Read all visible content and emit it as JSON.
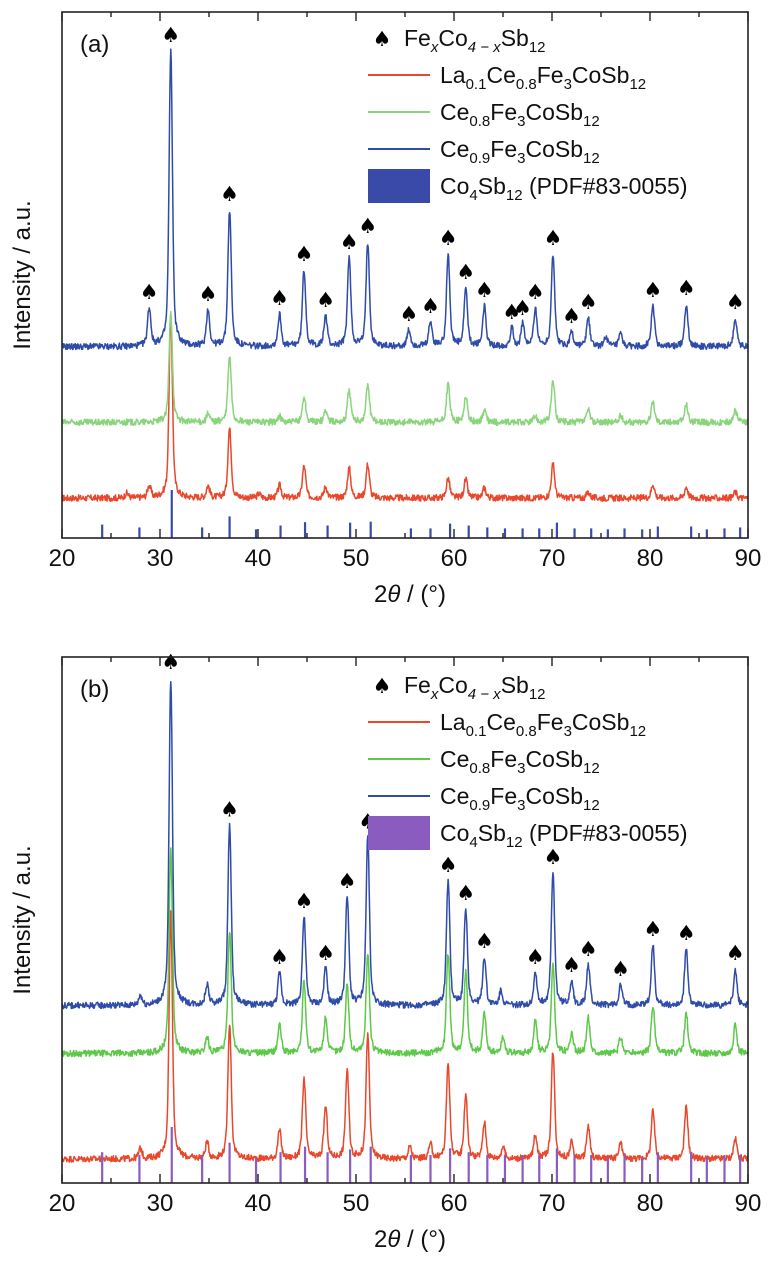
{
  "chart_data": [
    {
      "type": "line",
      "panel_label": "(a)",
      "xlabel_prefix": "2",
      "xlabel_theta": "θ",
      "xlabel_suffix": " / (°)",
      "ylabel": "Intensity / a.u.",
      "xlim": [
        20,
        90
      ],
      "x_ticks": [
        "20",
        "30",
        "40",
        "50",
        "60",
        "70",
        "80",
        "90"
      ],
      "y_ticks_labeled": false,
      "legend_position": "top-right",
      "legend": [
        {
          "kind": "marker",
          "base": [
            "Fe",
            "Co",
            "Sb"
          ],
          "subs": [
            "x",
            "4 − x",
            "12"
          ],
          "italic_subs": [
            true,
            true,
            false
          ]
        },
        {
          "kind": "line",
          "series": "La0.1Ce0.8Fe3CoSb12",
          "color": "#e8482c",
          "base": [
            "La",
            "Ce",
            "Fe",
            "CoSb"
          ],
          "subs": [
            "0.1",
            "0.8",
            "3",
            "12"
          ]
        },
        {
          "kind": "line",
          "series": "Ce0.8Fe3CoSb12",
          "color": "#8ad47c",
          "base": [
            "Ce",
            "Fe",
            "CoSb"
          ],
          "subs": [
            "0.8",
            "3",
            "12"
          ]
        },
        {
          "kind": "line",
          "series": "Ce0.9Fe3CoSb12",
          "color": "#2f4ca8",
          "base": [
            "Ce",
            "Fe",
            "CoSb"
          ],
          "subs": [
            "0.9",
            "3",
            "12"
          ]
        },
        {
          "kind": "box",
          "color": "#3a4aa8",
          "base": [
            "Co",
            "Sb"
          ],
          "subs": [
            "4",
            "12"
          ],
          "tail": " (PDF#83-0055)"
        }
      ],
      "reference_color": "#3a4aa8",
      "reference_peaks": [
        {
          "x": 24.1,
          "i": 0.28
        },
        {
          "x": 27.9,
          "i": 0.22
        },
        {
          "x": 31.2,
          "i": 1.0
        },
        {
          "x": 34.3,
          "i": 0.22
        },
        {
          "x": 37.1,
          "i": 0.45
        },
        {
          "x": 39.8,
          "i": 0.18
        },
        {
          "x": 42.3,
          "i": 0.26
        },
        {
          "x": 44.8,
          "i": 0.33
        },
        {
          "x": 47.1,
          "i": 0.26
        },
        {
          "x": 49.4,
          "i": 0.32
        },
        {
          "x": 51.5,
          "i": 0.34
        },
        {
          "x": 55.6,
          "i": 0.2
        },
        {
          "x": 57.6,
          "i": 0.2
        },
        {
          "x": 59.6,
          "i": 0.3
        },
        {
          "x": 61.5,
          "i": 0.26
        },
        {
          "x": 63.4,
          "i": 0.22
        },
        {
          "x": 65.2,
          "i": 0.2
        },
        {
          "x": 67.0,
          "i": 0.2
        },
        {
          "x": 68.7,
          "i": 0.2
        },
        {
          "x": 70.5,
          "i": 0.32
        },
        {
          "x": 72.3,
          "i": 0.2
        },
        {
          "x": 74.0,
          "i": 0.2
        },
        {
          "x": 75.7,
          "i": 0.18
        },
        {
          "x": 77.4,
          "i": 0.2
        },
        {
          "x": 79.2,
          "i": 0.18
        },
        {
          "x": 80.8,
          "i": 0.24
        },
        {
          "x": 84.2,
          "i": 0.24
        },
        {
          "x": 85.8,
          "i": 0.18
        },
        {
          "x": 87.6,
          "i": 0.2
        },
        {
          "x": 89.2,
          "i": 0.22
        }
      ],
      "spade_marks": [
        28.9,
        31.1,
        34.9,
        37.1,
        42.2,
        44.7,
        46.9,
        49.3,
        51.2,
        55.4,
        57.6,
        59.4,
        61.2,
        63.1,
        65.9,
        67.0,
        68.3,
        70.1,
        72.0,
        73.7,
        80.3,
        83.7,
        88.7
      ],
      "series": [
        {
          "name": "La0.1Ce0.8Fe3CoSb12",
          "color": "#e8482c",
          "baseline": 1.0,
          "peaks": [
            {
              "x": 26.6,
              "h": 0.12
            },
            {
              "x": 28.9,
              "h": 0.3
            },
            {
              "x": 31.1,
              "h": 4.6
            },
            {
              "x": 34.9,
              "h": 0.3
            },
            {
              "x": 37.1,
              "h": 1.75
            },
            {
              "x": 40.1,
              "h": 0.1
            },
            {
              "x": 42.2,
              "h": 0.32
            },
            {
              "x": 44.7,
              "h": 0.8
            },
            {
              "x": 46.9,
              "h": 0.28
            },
            {
              "x": 49.3,
              "h": 0.75
            },
            {
              "x": 51.2,
              "h": 0.85
            },
            {
              "x": 59.4,
              "h": 0.5
            },
            {
              "x": 61.2,
              "h": 0.46
            },
            {
              "x": 63.1,
              "h": 0.25
            },
            {
              "x": 70.1,
              "h": 0.85
            },
            {
              "x": 73.7,
              "h": 0.15
            },
            {
              "x": 80.3,
              "h": 0.35
            },
            {
              "x": 83.7,
              "h": 0.28
            },
            {
              "x": 88.7,
              "h": 0.15
            }
          ]
        },
        {
          "name": "Ce0.8Fe3CoSb12",
          "color": "#8ad47c",
          "baseline": 2.9,
          "peaks": [
            {
              "x": 31.1,
              "h": 2.75
            },
            {
              "x": 34.9,
              "h": 0.2
            },
            {
              "x": 37.1,
              "h": 1.65
            },
            {
              "x": 42.2,
              "h": 0.15
            },
            {
              "x": 44.7,
              "h": 0.65
            },
            {
              "x": 46.9,
              "h": 0.3
            },
            {
              "x": 49.3,
              "h": 0.8
            },
            {
              "x": 51.2,
              "h": 0.95
            },
            {
              "x": 59.4,
              "h": 0.95
            },
            {
              "x": 61.2,
              "h": 0.65
            },
            {
              "x": 63.1,
              "h": 0.3
            },
            {
              "x": 68.3,
              "h": 0.15
            },
            {
              "x": 70.1,
              "h": 1.05
            },
            {
              "x": 73.7,
              "h": 0.3
            },
            {
              "x": 77.0,
              "h": 0.15
            },
            {
              "x": 80.3,
              "h": 0.5
            },
            {
              "x": 83.7,
              "h": 0.45
            },
            {
              "x": 88.7,
              "h": 0.3
            }
          ]
        },
        {
          "name": "Ce0.9Fe3CoSb12",
          "color": "#2f4ca8",
          "baseline": 4.8,
          "peaks": [
            {
              "x": 28.9,
              "h": 0.95
            },
            {
              "x": 31.1,
              "h": 7.4
            },
            {
              "x": 34.9,
              "h": 0.9
            },
            {
              "x": 37.1,
              "h": 3.4
            },
            {
              "x": 42.2,
              "h": 0.8
            },
            {
              "x": 44.7,
              "h": 1.9
            },
            {
              "x": 46.9,
              "h": 0.75
            },
            {
              "x": 49.3,
              "h": 2.2
            },
            {
              "x": 51.2,
              "h": 2.6
            },
            {
              "x": 55.4,
              "h": 0.4
            },
            {
              "x": 57.6,
              "h": 0.6
            },
            {
              "x": 59.4,
              "h": 2.3
            },
            {
              "x": 61.2,
              "h": 1.45
            },
            {
              "x": 63.1,
              "h": 1.0
            },
            {
              "x": 65.9,
              "h": 0.45
            },
            {
              "x": 67.0,
              "h": 0.55
            },
            {
              "x": 68.3,
              "h": 0.95
            },
            {
              "x": 70.1,
              "h": 2.3
            },
            {
              "x": 72.0,
              "h": 0.35
            },
            {
              "x": 73.7,
              "h": 0.7
            },
            {
              "x": 75.5,
              "h": 0.25
            },
            {
              "x": 77.0,
              "h": 0.3
            },
            {
              "x": 80.3,
              "h": 1.0
            },
            {
              "x": 83.7,
              "h": 1.05
            },
            {
              "x": 88.7,
              "h": 0.7
            }
          ]
        }
      ]
    },
    {
      "type": "line",
      "panel_label": "(b)",
      "xlabel_prefix": "2",
      "xlabel_theta": "θ",
      "xlabel_suffix": " / (°)",
      "ylabel": "Intensity / a.u.",
      "xlim": [
        20,
        90
      ],
      "x_ticks": [
        "20",
        "30",
        "40",
        "50",
        "60",
        "70",
        "80",
        "90"
      ],
      "y_ticks_labeled": false,
      "legend_position": "top-right",
      "legend": [
        {
          "kind": "marker",
          "base": [
            "Fe",
            "Co",
            "Sb"
          ],
          "subs": [
            "x",
            "4 − x",
            "12"
          ],
          "italic_subs": [
            true,
            true,
            false
          ]
        },
        {
          "kind": "line",
          "series": "La0.1Ce0.8Fe3CoSb12",
          "color": "#e8482c",
          "base": [
            "La",
            "Ce",
            "Fe",
            "CoSb"
          ],
          "subs": [
            "0.1",
            "0.8",
            "3",
            "12"
          ]
        },
        {
          "kind": "line",
          "series": "Ce0.8Fe3CoSb12",
          "color": "#5ec84a",
          "base": [
            "Ce",
            "Fe",
            "CoSb"
          ],
          "subs": [
            "0.8",
            "3",
            "12"
          ]
        },
        {
          "kind": "line",
          "series": "Ce0.9Fe3CoSb12",
          "color": "#2f4ca8",
          "base": [
            "Ce",
            "Fe",
            "CoSb"
          ],
          "subs": [
            "0.9",
            "3",
            "12"
          ]
        },
        {
          "kind": "box",
          "color": "#8a5cc0",
          "base": [
            "Co",
            "Sb"
          ],
          "subs": [
            "4",
            "12"
          ],
          "tail": " (PDF#83-0055)"
        }
      ],
      "reference_color": "#8a5cc0",
      "reference_peaks": [
        {
          "x": 24.1,
          "i": 0.55
        },
        {
          "x": 27.9,
          "i": 0.5
        },
        {
          "x": 31.2,
          "i": 1.0
        },
        {
          "x": 34.3,
          "i": 0.5
        },
        {
          "x": 37.1,
          "i": 0.72
        },
        {
          "x": 39.8,
          "i": 0.45
        },
        {
          "x": 42.3,
          "i": 0.55
        },
        {
          "x": 44.8,
          "i": 0.65
        },
        {
          "x": 47.1,
          "i": 0.55
        },
        {
          "x": 49.4,
          "i": 0.6
        },
        {
          "x": 51.5,
          "i": 0.65
        },
        {
          "x": 55.6,
          "i": 0.5
        },
        {
          "x": 57.6,
          "i": 0.5
        },
        {
          "x": 59.6,
          "i": 0.62
        },
        {
          "x": 61.5,
          "i": 0.55
        },
        {
          "x": 63.4,
          "i": 0.5
        },
        {
          "x": 65.2,
          "i": 0.5
        },
        {
          "x": 67.0,
          "i": 0.5
        },
        {
          "x": 68.7,
          "i": 0.5
        },
        {
          "x": 70.5,
          "i": 0.62
        },
        {
          "x": 72.3,
          "i": 0.5
        },
        {
          "x": 74.0,
          "i": 0.5
        },
        {
          "x": 75.7,
          "i": 0.45
        },
        {
          "x": 77.4,
          "i": 0.5
        },
        {
          "x": 79.2,
          "i": 0.45
        },
        {
          "x": 80.8,
          "i": 0.55
        },
        {
          "x": 84.2,
          "i": 0.55
        },
        {
          "x": 85.8,
          "i": 0.45
        },
        {
          "x": 87.6,
          "i": 0.5
        },
        {
          "x": 89.2,
          "i": 0.5
        }
      ],
      "spade_marks": [
        31.1,
        37.1,
        42.2,
        44.7,
        46.9,
        49.1,
        51.2,
        59.4,
        61.2,
        63.1,
        68.3,
        70.1,
        72.0,
        73.7,
        77.0,
        80.3,
        83.7,
        88.7
      ],
      "series": [
        {
          "name": "La0.1Ce0.8Fe3CoSb12",
          "color": "#e8482c",
          "baseline": 0.6,
          "peaks": [
            {
              "x": 28.0,
              "h": 0.25
            },
            {
              "x": 31.1,
              "h": 6.2
            },
            {
              "x": 34.8,
              "h": 0.4
            },
            {
              "x": 37.1,
              "h": 3.4
            },
            {
              "x": 42.2,
              "h": 0.7
            },
            {
              "x": 44.7,
              "h": 2.0
            },
            {
              "x": 46.9,
              "h": 1.3
            },
            {
              "x": 49.1,
              "h": 2.2
            },
            {
              "x": 51.2,
              "h": 3.1
            },
            {
              "x": 55.5,
              "h": 0.3
            },
            {
              "x": 57.6,
              "h": 0.35
            },
            {
              "x": 59.4,
              "h": 2.4
            },
            {
              "x": 61.2,
              "h": 1.6
            },
            {
              "x": 63.1,
              "h": 0.9
            },
            {
              "x": 65.0,
              "h": 0.3
            },
            {
              "x": 68.3,
              "h": 0.6
            },
            {
              "x": 70.1,
              "h": 2.7
            },
            {
              "x": 72.0,
              "h": 0.4
            },
            {
              "x": 73.7,
              "h": 0.8
            },
            {
              "x": 77.0,
              "h": 0.4
            },
            {
              "x": 80.3,
              "h": 1.2
            },
            {
              "x": 83.7,
              "h": 1.3
            },
            {
              "x": 88.7,
              "h": 0.5
            }
          ]
        },
        {
          "name": "Ce0.8Fe3CoSb12",
          "color": "#5ec84a",
          "baseline": 3.25,
          "peaks": [
            {
              "x": 31.1,
              "h": 5.1
            },
            {
              "x": 34.8,
              "h": 0.4
            },
            {
              "x": 37.1,
              "h": 3.1
            },
            {
              "x": 42.2,
              "h": 0.7
            },
            {
              "x": 44.7,
              "h": 1.8
            },
            {
              "x": 46.9,
              "h": 0.9
            },
            {
              "x": 49.1,
              "h": 1.7
            },
            {
              "x": 51.2,
              "h": 2.5
            },
            {
              "x": 59.4,
              "h": 2.5
            },
            {
              "x": 61.2,
              "h": 2.0
            },
            {
              "x": 63.1,
              "h": 1.0
            },
            {
              "x": 65.0,
              "h": 0.4
            },
            {
              "x": 68.3,
              "h": 0.8
            },
            {
              "x": 70.1,
              "h": 2.2
            },
            {
              "x": 72.0,
              "h": 0.5
            },
            {
              "x": 73.7,
              "h": 0.9
            },
            {
              "x": 77.0,
              "h": 0.4
            },
            {
              "x": 80.3,
              "h": 1.2
            },
            {
              "x": 83.7,
              "h": 1.0
            },
            {
              "x": 88.7,
              "h": 0.7
            }
          ]
        },
        {
          "name": "Ce0.9Fe3CoSb12",
          "color": "#2f4ca8",
          "baseline": 4.45,
          "peaks": [
            {
              "x": 28.0,
              "h": 0.25
            },
            {
              "x": 31.1,
              "h": 8.2
            },
            {
              "x": 34.8,
              "h": 0.5
            },
            {
              "x": 37.1,
              "h": 4.5
            },
            {
              "x": 42.2,
              "h": 0.8
            },
            {
              "x": 44.7,
              "h": 2.2
            },
            {
              "x": 46.9,
              "h": 0.9
            },
            {
              "x": 49.1,
              "h": 2.7
            },
            {
              "x": 51.2,
              "h": 4.2
            },
            {
              "x": 59.4,
              "h": 3.1
            },
            {
              "x": 61.2,
              "h": 2.4
            },
            {
              "x": 63.1,
              "h": 1.2
            },
            {
              "x": 64.8,
              "h": 0.35
            },
            {
              "x": 68.3,
              "h": 0.8
            },
            {
              "x": 70.1,
              "h": 3.3
            },
            {
              "x": 72.0,
              "h": 0.6
            },
            {
              "x": 73.7,
              "h": 1.0
            },
            {
              "x": 77.0,
              "h": 0.5
            },
            {
              "x": 80.3,
              "h": 1.5
            },
            {
              "x": 83.7,
              "h": 1.4
            },
            {
              "x": 88.7,
              "h": 0.9
            }
          ]
        }
      ]
    }
  ]
}
